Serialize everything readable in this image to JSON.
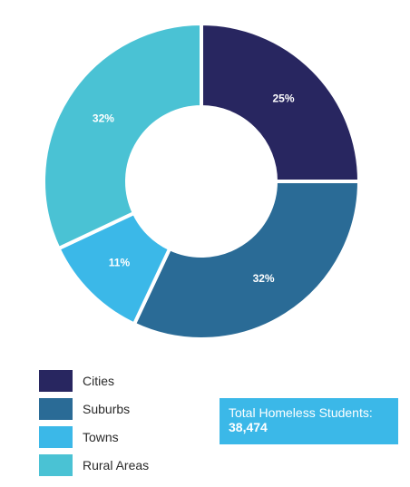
{
  "chart_data": {
    "type": "pie",
    "categories": [
      "Cities",
      "Suburbs",
      "Towns",
      "Rural Areas"
    ],
    "values": [
      25,
      32,
      11,
      32
    ],
    "labels": [
      "25%",
      "32%",
      "11%",
      "32%"
    ],
    "colors": [
      "#282660",
      "#2a6b96",
      "#3bb8e8",
      "#4ac2d4"
    ],
    "donut": true,
    "legend_position": "bottom-left"
  },
  "legend": {
    "items": [
      {
        "label": "Cities",
        "color": "#282660"
      },
      {
        "label": "Suburbs",
        "color": "#2a6b96"
      },
      {
        "label": "Towns",
        "color": "#3bb8e8"
      },
      {
        "label": "Rural Areas",
        "color": "#4ac2d4"
      }
    ]
  },
  "total": {
    "title": "Total Homeless Students:",
    "value": "38,474"
  }
}
